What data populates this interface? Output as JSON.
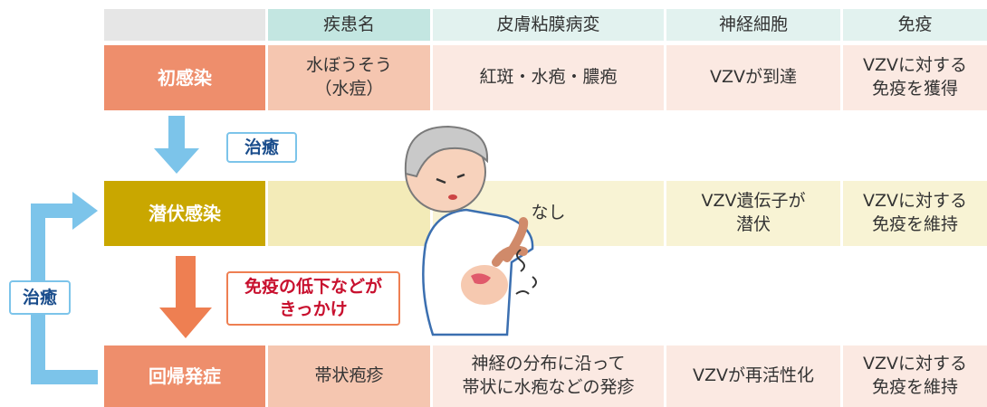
{
  "table": {
    "header": {
      "disease": "疾患名",
      "skin": "皮膚粘膜病変",
      "nerve": "神経細胞",
      "immunity": "免疫"
    },
    "rows": [
      {
        "label": "初感染",
        "cells": {
          "disease": [
            "水ぼうそう",
            "（水痘）"
          ],
          "skin": [
            "紅斑・水疱・膿疱"
          ],
          "nerve": [
            "VZVが到達"
          ],
          "immunity": [
            "VZVに対する",
            "免疫を獲得"
          ]
        }
      },
      {
        "label": "潜伏感染",
        "cells": {
          "skin": [
            "なし"
          ],
          "nerve": [
            "VZV遺伝子が",
            "潜伏"
          ],
          "immunity": [
            "VZVに対する",
            "免疫を維持"
          ]
        }
      },
      {
        "label": "回帰発症",
        "cells": {
          "disease": [
            "帯状疱疹"
          ],
          "skin": [
            "神経の分布に沿って",
            "帯状に水疱などの発疹"
          ],
          "nerve": [
            "VZVが再活性化"
          ],
          "immunity": [
            "VZVに対する",
            "免疫を維持"
          ]
        }
      }
    ]
  },
  "arrows": [
    {
      "label": [
        "治癒"
      ]
    },
    {
      "label": [
        "免疫の低下などが",
        "きっかけ"
      ]
    },
    {
      "label": [
        "治癒"
      ]
    }
  ]
}
